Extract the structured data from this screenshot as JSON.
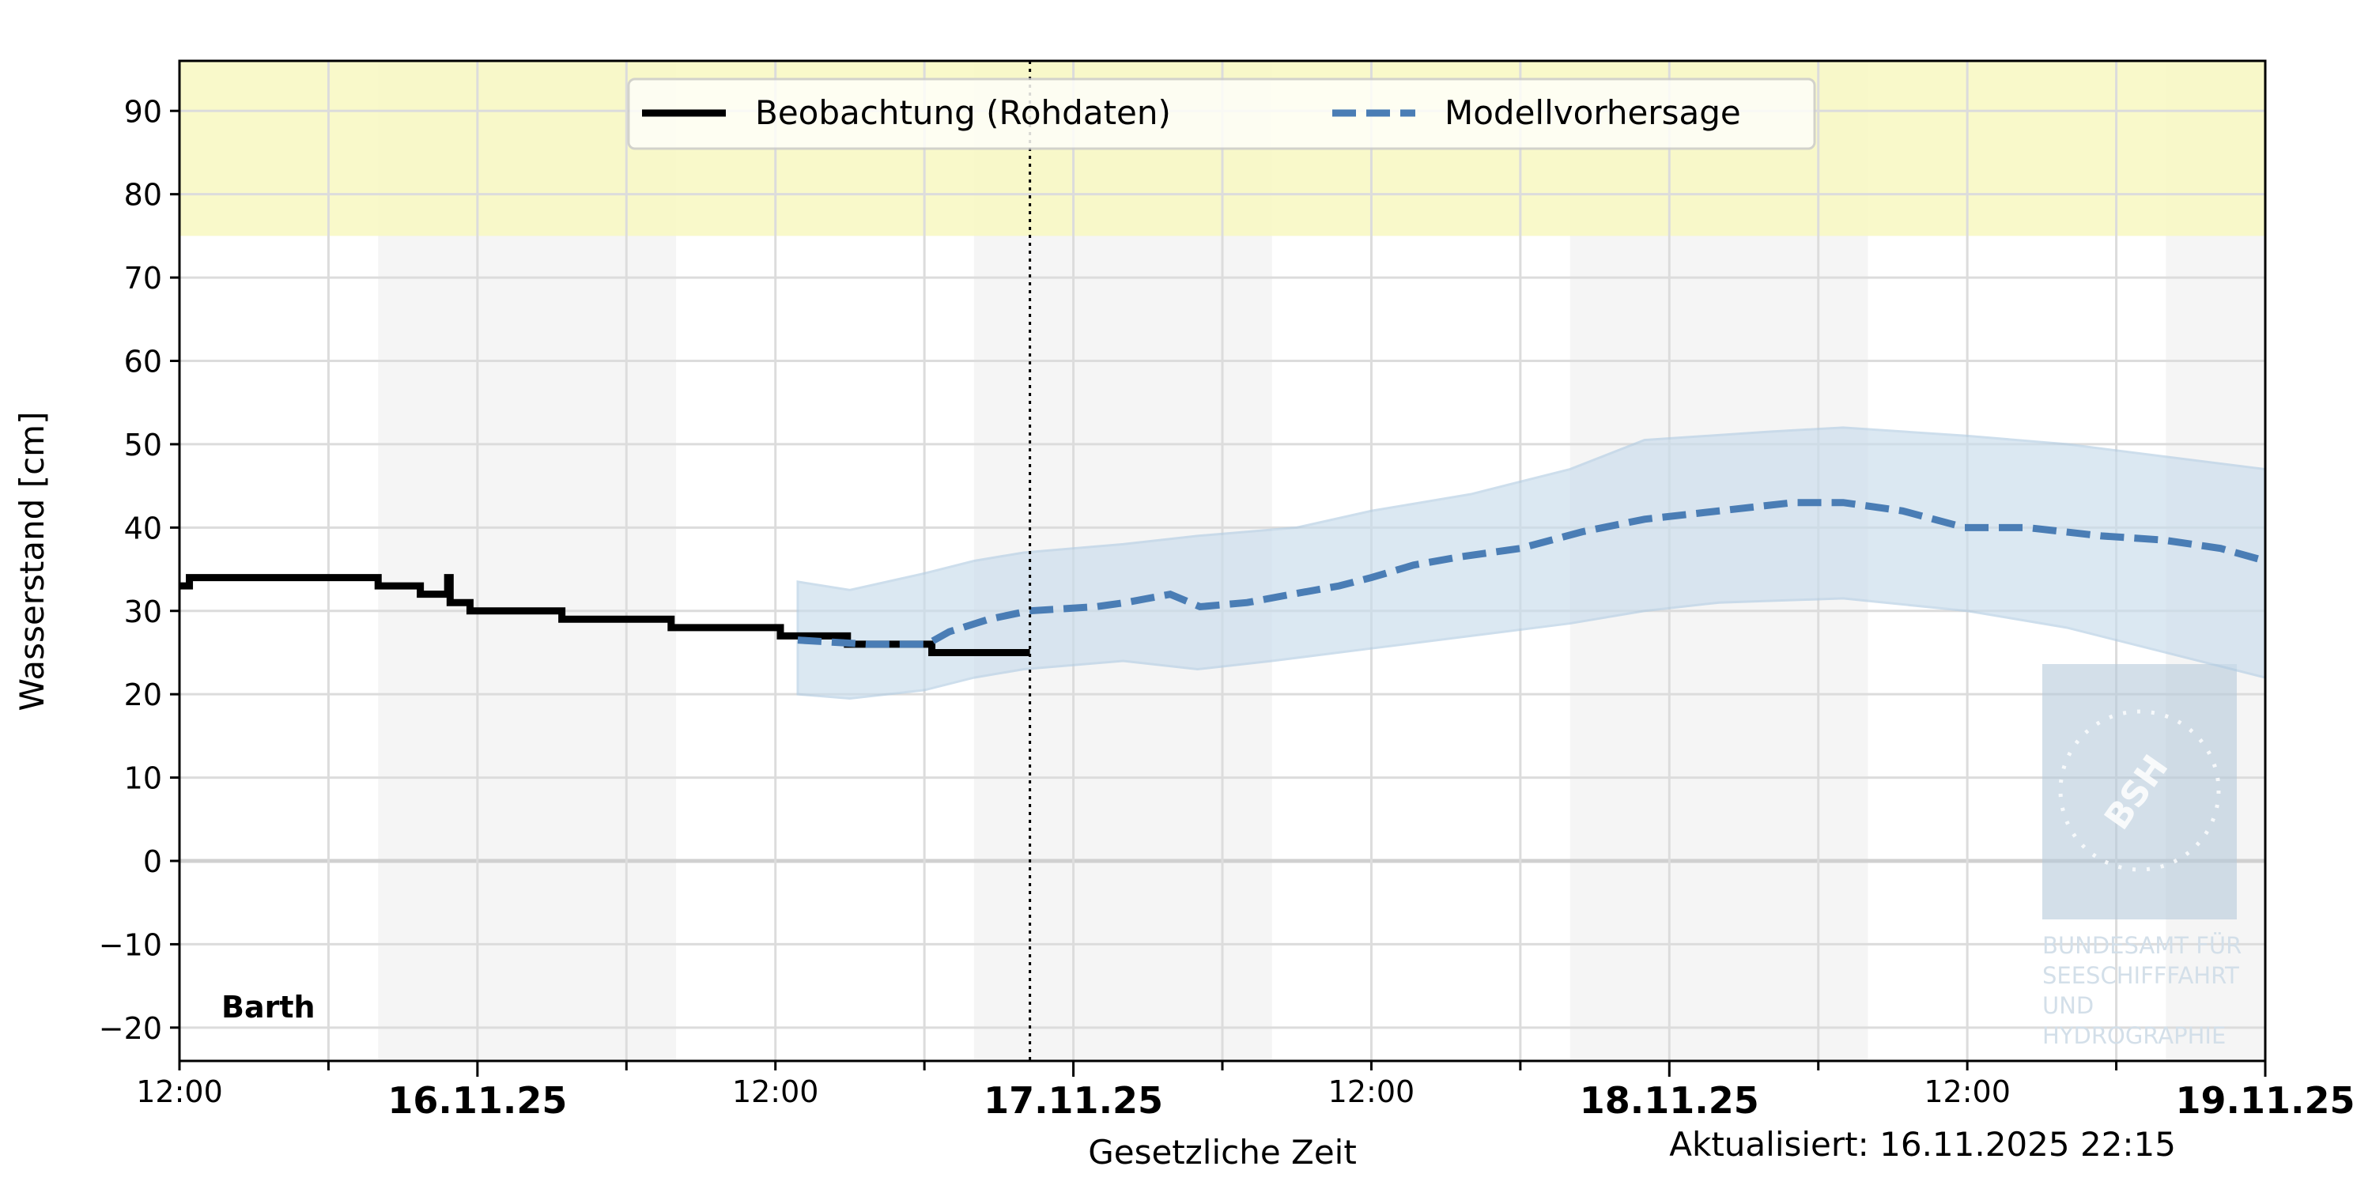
{
  "chart_data": {
    "type": "line",
    "ylabel": "Wasserstand [cm]",
    "xlabel": "Gesetzliche Zeit",
    "updated": "Aktualisiert: 16.11.2025 22:15",
    "station": "Barth",
    "x_unit": "hours since 16.11.25 00:00",
    "xlim": [
      -12,
      72
    ],
    "ylim": [
      -24,
      96
    ],
    "yticks": [
      -20,
      -10,
      0,
      10,
      20,
      30,
      40,
      50,
      60,
      70,
      80,
      90
    ],
    "ytick_labels": [
      "−20",
      "−10",
      "0",
      "10",
      "20",
      "30",
      "40",
      "50",
      "60",
      "70",
      "80",
      "90"
    ],
    "xticks": [
      {
        "x": -12,
        "label": "12:00",
        "major": false
      },
      {
        "x": 0,
        "label": "16.11.25",
        "major": true
      },
      {
        "x": 12,
        "label": "12:00",
        "major": false
      },
      {
        "x": 24,
        "label": "17.11.25",
        "major": true
      },
      {
        "x": 36,
        "label": "12:00",
        "major": false
      },
      {
        "x": 48,
        "label": "18.11.25",
        "major": true
      },
      {
        "x": 60,
        "label": "12:00",
        "major": false
      },
      {
        "x": 72,
        "label": "19.11.25",
        "major": true
      }
    ],
    "minor_xticks": [
      -6,
      6,
      18,
      30,
      42,
      54,
      66
    ],
    "night_bands": [
      [
        -4,
        8
      ],
      [
        20,
        32
      ],
      [
        44,
        56
      ],
      [
        68,
        72
      ]
    ],
    "warning_band": {
      "from": 75,
      "to": 96,
      "color": "#f8f8c4"
    },
    "now_line": 22.25,
    "legend": {
      "position": "top-center",
      "entries": [
        "Beobachtung (Rohdaten)",
        "Modellvorhersage"
      ]
    },
    "colors": {
      "observation": "#000000",
      "forecast": "#4a7db5",
      "band": "#c9dcec",
      "night": "#f5f5f5"
    },
    "series": [
      {
        "name": "Beobachtung (Rohdaten)",
        "style": "step",
        "points": [
          [
            -12,
            33
          ],
          [
            -11.6,
            34
          ],
          [
            -4,
            33
          ],
          [
            -2.3,
            32
          ],
          [
            -1.2,
            34
          ],
          [
            -1.1,
            31
          ],
          [
            -0.3,
            30
          ],
          [
            3.4,
            29
          ],
          [
            7.8,
            28
          ],
          [
            12.2,
            27
          ],
          [
            14.9,
            26
          ],
          [
            18.3,
            25
          ],
          [
            22.25,
            25
          ]
        ]
      },
      {
        "name": "Modellvorhersage",
        "style": "dashed",
        "points": [
          [
            12.9,
            26.5
          ],
          [
            15.7,
            26
          ],
          [
            18.1,
            26
          ],
          [
            19,
            27.5
          ],
          [
            20.6,
            29
          ],
          [
            22.2,
            30
          ],
          [
            24.9,
            30.5
          ],
          [
            26.1,
            31
          ],
          [
            27.9,
            32
          ],
          [
            29.1,
            30.5
          ],
          [
            31,
            31
          ],
          [
            32.8,
            32
          ],
          [
            34.7,
            33
          ],
          [
            36,
            34
          ],
          [
            37.7,
            35.5
          ],
          [
            39.6,
            36.5
          ],
          [
            42,
            37.5
          ],
          [
            44.5,
            39.5
          ],
          [
            47,
            41
          ],
          [
            50,
            42
          ],
          [
            53,
            43
          ],
          [
            55,
            43
          ],
          [
            57.4,
            42
          ],
          [
            59.9,
            40
          ],
          [
            62.4,
            40
          ],
          [
            65.4,
            39
          ],
          [
            67.9,
            38.5
          ],
          [
            70.2,
            37.5
          ],
          [
            72,
            36
          ]
        ],
        "lower": [
          [
            12.9,
            20
          ],
          [
            15,
            19.5
          ],
          [
            18,
            20.5
          ],
          [
            20,
            22
          ],
          [
            22,
            23
          ],
          [
            26,
            24
          ],
          [
            29,
            23
          ],
          [
            32,
            24
          ],
          [
            36,
            25.5
          ],
          [
            40,
            27
          ],
          [
            44,
            28.5
          ],
          [
            47,
            30
          ],
          [
            50,
            31
          ],
          [
            55,
            31.5
          ],
          [
            60,
            30
          ],
          [
            64,
            28
          ],
          [
            68,
            25
          ],
          [
            72,
            22
          ]
        ],
        "upper": [
          [
            12.9,
            33.5
          ],
          [
            15,
            32.5
          ],
          [
            18,
            34.5
          ],
          [
            20,
            36
          ],
          [
            22,
            37
          ],
          [
            26,
            38
          ],
          [
            29,
            39
          ],
          [
            33,
            40
          ],
          [
            36,
            42
          ],
          [
            40,
            44
          ],
          [
            44,
            47
          ],
          [
            47,
            50.5
          ],
          [
            52,
            51.5
          ],
          [
            55,
            52
          ],
          [
            60,
            51
          ],
          [
            64,
            50
          ],
          [
            68,
            48.5
          ],
          [
            72,
            47
          ]
        ]
      }
    ]
  },
  "logo": {
    "abbr": "BSH",
    "lines": [
      "BUNDESAMT FÜR",
      "SEESCHIFFFAHRT",
      "UND",
      "HYDROGRAPHIE"
    ]
  }
}
